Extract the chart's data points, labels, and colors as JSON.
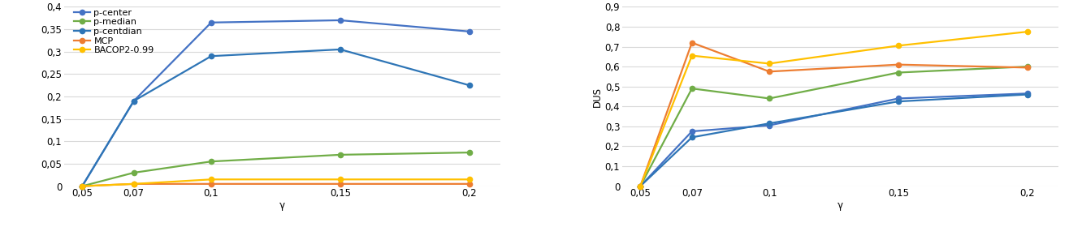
{
  "x": [
    0.05,
    0.07,
    0.1,
    0.15,
    0.2
  ],
  "x_labels": [
    "0,05",
    "0,07",
    "0,1",
    "0,15",
    "0,2"
  ],
  "left": {
    "ylabel": "",
    "xlabel": "γ",
    "ylim": [
      0,
      0.4
    ],
    "yticks": [
      0,
      0.05,
      0.1,
      0.15,
      0.2,
      0.25,
      0.3,
      0.35,
      0.4
    ],
    "ytick_labels": [
      "0",
      "0,05",
      "0,1",
      "0,15",
      "0,2",
      "0,25",
      "0,3",
      "0,35",
      "0,4"
    ],
    "series": [
      {
        "label": "p-center",
        "color": "#4472C4",
        "data": [
          0.0,
          0.19,
          0.365,
          0.37,
          0.345
        ]
      },
      {
        "label": "p-median",
        "color": "#70AD47",
        "data": [
          0.0,
          0.03,
          0.055,
          0.07,
          0.075
        ]
      },
      {
        "label": "p-centdian",
        "color": "#2E75B6",
        "data": [
          0.0,
          0.19,
          0.29,
          0.305,
          0.225
        ]
      },
      {
        "label": "MCP",
        "color": "#ED7D31",
        "data": [
          0.0,
          0.005,
          0.005,
          0.005,
          0.005
        ]
      },
      {
        "label": "BACOP2-0.99",
        "color": "#FFC000",
        "data": [
          0.0,
          0.005,
          0.015,
          0.015,
          0.015
        ]
      }
    ]
  },
  "right": {
    "ylabel": "DUS",
    "xlabel": "γ",
    "ylim": [
      0,
      0.9
    ],
    "yticks": [
      0,
      0.1,
      0.2,
      0.3,
      0.4,
      0.5,
      0.6,
      0.7,
      0.8,
      0.9
    ],
    "ytick_labels": [
      "0",
      "0,1",
      "0,2",
      "0,3",
      "0,4",
      "0,5",
      "0,6",
      "0,7",
      "0,8",
      "0,9"
    ],
    "series": [
      {
        "label": "p-center",
        "color": "#4472C4",
        "data": [
          0.0,
          0.275,
          0.305,
          0.44,
          0.465
        ]
      },
      {
        "label": "p-median",
        "color": "#70AD47",
        "data": [
          0.0,
          0.49,
          0.44,
          0.57,
          0.6
        ]
      },
      {
        "label": "p-centdian",
        "color": "#2E75B6",
        "data": [
          0.0,
          0.245,
          0.315,
          0.425,
          0.46
        ]
      },
      {
        "label": "MCP",
        "color": "#ED7D31",
        "data": [
          0.0,
          0.72,
          0.575,
          0.61,
          0.595
        ]
      },
      {
        "label": "BACOP2-0.99",
        "color": "#FFC000",
        "data": [
          0.0,
          0.655,
          0.615,
          0.705,
          0.775
        ]
      }
    ]
  },
  "bg_color": "#FFFFFF",
  "grid_color": "#D9D9D9",
  "font_size": 8.5,
  "legend_font_size": 8.0,
  "line_width": 1.6,
  "marker_size": 4.5
}
